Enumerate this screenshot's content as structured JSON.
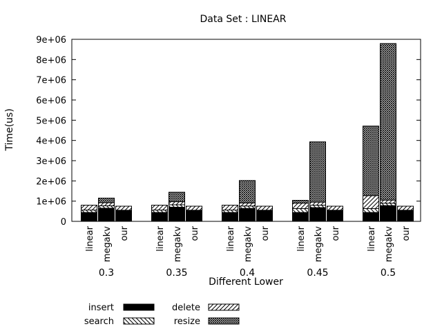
{
  "chart_data": {
    "type": "bar",
    "stacked": true,
    "title": "Data Set : LINEAR",
    "xlabel": "Different Lower",
    "ylabel": "Time(us)",
    "ylim": [
      0,
      9000000
    ],
    "yticks": [
      "0",
      "1e+06",
      "2e+06",
      "3e+06",
      "4e+06",
      "5e+06",
      "6e+06",
      "7e+06",
      "8e+06",
      "9e+06"
    ],
    "ytick_values": [
      0,
      1000000,
      2000000,
      3000000,
      4000000,
      5000000,
      6000000,
      7000000,
      8000000,
      9000000
    ],
    "groups": [
      "0.3",
      "0.35",
      "0.4",
      "0.45",
      "0.5"
    ],
    "bar_labels": [
      "linear",
      "megakv",
      "our"
    ],
    "series": [
      {
        "name": "insert",
        "pattern": "solid"
      },
      {
        "name": "search",
        "pattern": "backslash"
      },
      {
        "name": "delete",
        "pattern": "slash"
      },
      {
        "name": "resize",
        "pattern": "crosshatch"
      }
    ],
    "data": [
      [
        [
          440000,
          120000,
          240000,
          0
        ],
        [
          650000,
          120000,
          150000,
          230000
        ],
        [
          520000,
          30000,
          200000,
          0
        ]
      ],
      [
        [
          440000,
          120000,
          240000,
          0
        ],
        [
          700000,
          120000,
          150000,
          470000
        ],
        [
          520000,
          30000,
          200000,
          0
        ]
      ],
      [
        [
          440000,
          120000,
          240000,
          0
        ],
        [
          640000,
          120000,
          150000,
          1110000
        ],
        [
          520000,
          30000,
          200000,
          0
        ]
      ],
      [
        [
          440000,
          190000,
          270000,
          140000
        ],
        [
          680000,
          120000,
          150000,
          2980000
        ],
        [
          520000,
          30000,
          200000,
          0
        ]
      ],
      [
        [
          440000,
          190000,
          640000,
          3440000
        ],
        [
          780000,
          120000,
          150000,
          7740000
        ],
        [
          520000,
          30000,
          200000,
          0
        ]
      ]
    ],
    "legend_position": "bottom"
  }
}
